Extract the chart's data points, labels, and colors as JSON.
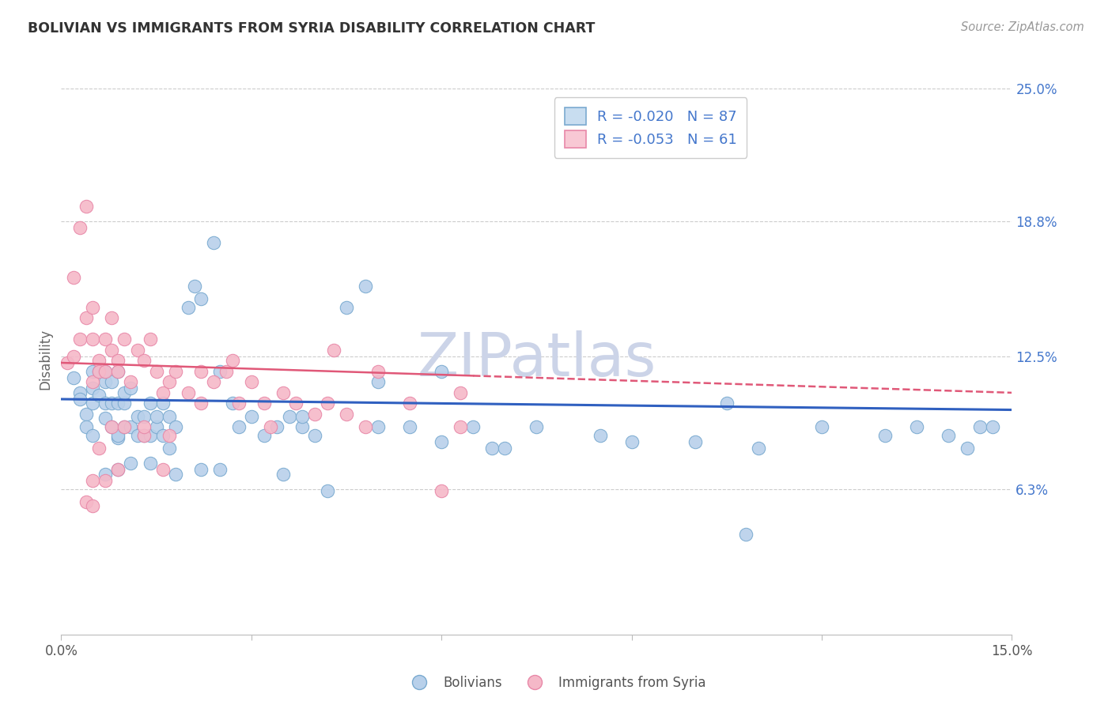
{
  "title": "BOLIVIAN VS IMMIGRANTS FROM SYRIA DISABILITY CORRELATION CHART",
  "source": "Source: ZipAtlas.com",
  "ylabel": "Disability",
  "x_min": 0.0,
  "x_max": 0.15,
  "y_min": 0.0,
  "y_max": 0.25,
  "y_ticks_right": [
    0.063,
    0.125,
    0.188,
    0.25
  ],
  "y_tick_labels_right": [
    "6.3%",
    "12.5%",
    "18.8%",
    "25.0%"
  ],
  "blue_R": "-0.020",
  "blue_N": "87",
  "pink_R": "-0.053",
  "pink_N": "61",
  "blue_color": "#b8d0ea",
  "pink_color": "#f5b8c8",
  "blue_edge_color": "#7aaad0",
  "pink_edge_color": "#e888a8",
  "blue_line_color": "#3060c0",
  "pink_line_color": "#e05878",
  "grid_color": "#cccccc",
  "title_color": "#333333",
  "right_axis_color": "#4477cc",
  "watermark_color": "#ccd4e8",
  "legend_box_blue": "#c8ddf0",
  "legend_box_pink": "#f8c8d4",
  "blue_scatter_x": [
    0.002,
    0.003,
    0.003,
    0.004,
    0.004,
    0.005,
    0.005,
    0.005,
    0.005,
    0.006,
    0.006,
    0.007,
    0.007,
    0.007,
    0.007,
    0.008,
    0.008,
    0.008,
    0.009,
    0.009,
    0.009,
    0.009,
    0.01,
    0.01,
    0.01,
    0.011,
    0.011,
    0.012,
    0.012,
    0.013,
    0.013,
    0.014,
    0.014,
    0.015,
    0.015,
    0.016,
    0.016,
    0.017,
    0.017,
    0.018,
    0.02,
    0.021,
    0.022,
    0.024,
    0.025,
    0.027,
    0.028,
    0.03,
    0.032,
    0.034,
    0.036,
    0.038,
    0.04,
    0.042,
    0.045,
    0.048,
    0.05,
    0.055,
    0.06,
    0.065,
    0.068,
    0.07,
    0.075,
    0.085,
    0.09,
    0.1,
    0.105,
    0.11,
    0.12,
    0.13,
    0.135,
    0.14,
    0.143,
    0.145,
    0.147,
    0.108,
    0.038,
    0.05,
    0.06,
    0.035,
    0.025,
    0.022,
    0.018,
    0.014,
    0.011,
    0.009,
    0.007
  ],
  "blue_scatter_y": [
    0.115,
    0.108,
    0.105,
    0.098,
    0.092,
    0.103,
    0.11,
    0.118,
    0.088,
    0.107,
    0.118,
    0.103,
    0.113,
    0.118,
    0.096,
    0.103,
    0.113,
    0.092,
    0.087,
    0.103,
    0.118,
    0.088,
    0.092,
    0.103,
    0.108,
    0.092,
    0.11,
    0.088,
    0.097,
    0.088,
    0.097,
    0.088,
    0.103,
    0.092,
    0.097,
    0.103,
    0.088,
    0.082,
    0.097,
    0.092,
    0.148,
    0.158,
    0.152,
    0.178,
    0.118,
    0.103,
    0.092,
    0.097,
    0.088,
    0.092,
    0.097,
    0.092,
    0.088,
    0.062,
    0.148,
    0.158,
    0.113,
    0.092,
    0.118,
    0.092,
    0.082,
    0.082,
    0.092,
    0.088,
    0.085,
    0.085,
    0.103,
    0.082,
    0.092,
    0.088,
    0.092,
    0.088,
    0.082,
    0.092,
    0.092,
    0.042,
    0.097,
    0.092,
    0.085,
    0.07,
    0.072,
    0.072,
    0.07,
    0.075,
    0.075,
    0.072,
    0.07
  ],
  "pink_scatter_x": [
    0.001,
    0.002,
    0.002,
    0.003,
    0.003,
    0.004,
    0.004,
    0.005,
    0.005,
    0.005,
    0.006,
    0.006,
    0.007,
    0.007,
    0.008,
    0.008,
    0.009,
    0.009,
    0.01,
    0.011,
    0.012,
    0.013,
    0.014,
    0.015,
    0.016,
    0.017,
    0.018,
    0.02,
    0.022,
    0.024,
    0.026,
    0.028,
    0.03,
    0.032,
    0.035,
    0.037,
    0.04,
    0.042,
    0.045,
    0.048,
    0.05,
    0.055,
    0.06,
    0.063,
    0.043,
    0.033,
    0.027,
    0.022,
    0.016,
    0.013,
    0.009,
    0.007,
    0.005,
    0.004,
    0.006,
    0.008,
    0.01,
    0.013,
    0.017,
    0.063,
    0.005
  ],
  "pink_scatter_y": [
    0.122,
    0.125,
    0.162,
    0.133,
    0.185,
    0.143,
    0.195,
    0.113,
    0.133,
    0.148,
    0.123,
    0.118,
    0.133,
    0.118,
    0.128,
    0.143,
    0.123,
    0.118,
    0.133,
    0.113,
    0.128,
    0.123,
    0.133,
    0.118,
    0.108,
    0.113,
    0.118,
    0.108,
    0.118,
    0.113,
    0.118,
    0.103,
    0.113,
    0.103,
    0.108,
    0.103,
    0.098,
    0.103,
    0.098,
    0.092,
    0.118,
    0.103,
    0.062,
    0.092,
    0.128,
    0.092,
    0.123,
    0.103,
    0.072,
    0.088,
    0.072,
    0.067,
    0.067,
    0.057,
    0.082,
    0.092,
    0.092,
    0.092,
    0.088,
    0.108,
    0.055
  ],
  "blue_trend_x": [
    0.0,
    0.15
  ],
  "blue_trend_y": [
    0.105,
    0.1
  ],
  "pink_trend_x": [
    0.0,
    0.15
  ],
  "pink_trend_y": [
    0.122,
    0.108
  ]
}
